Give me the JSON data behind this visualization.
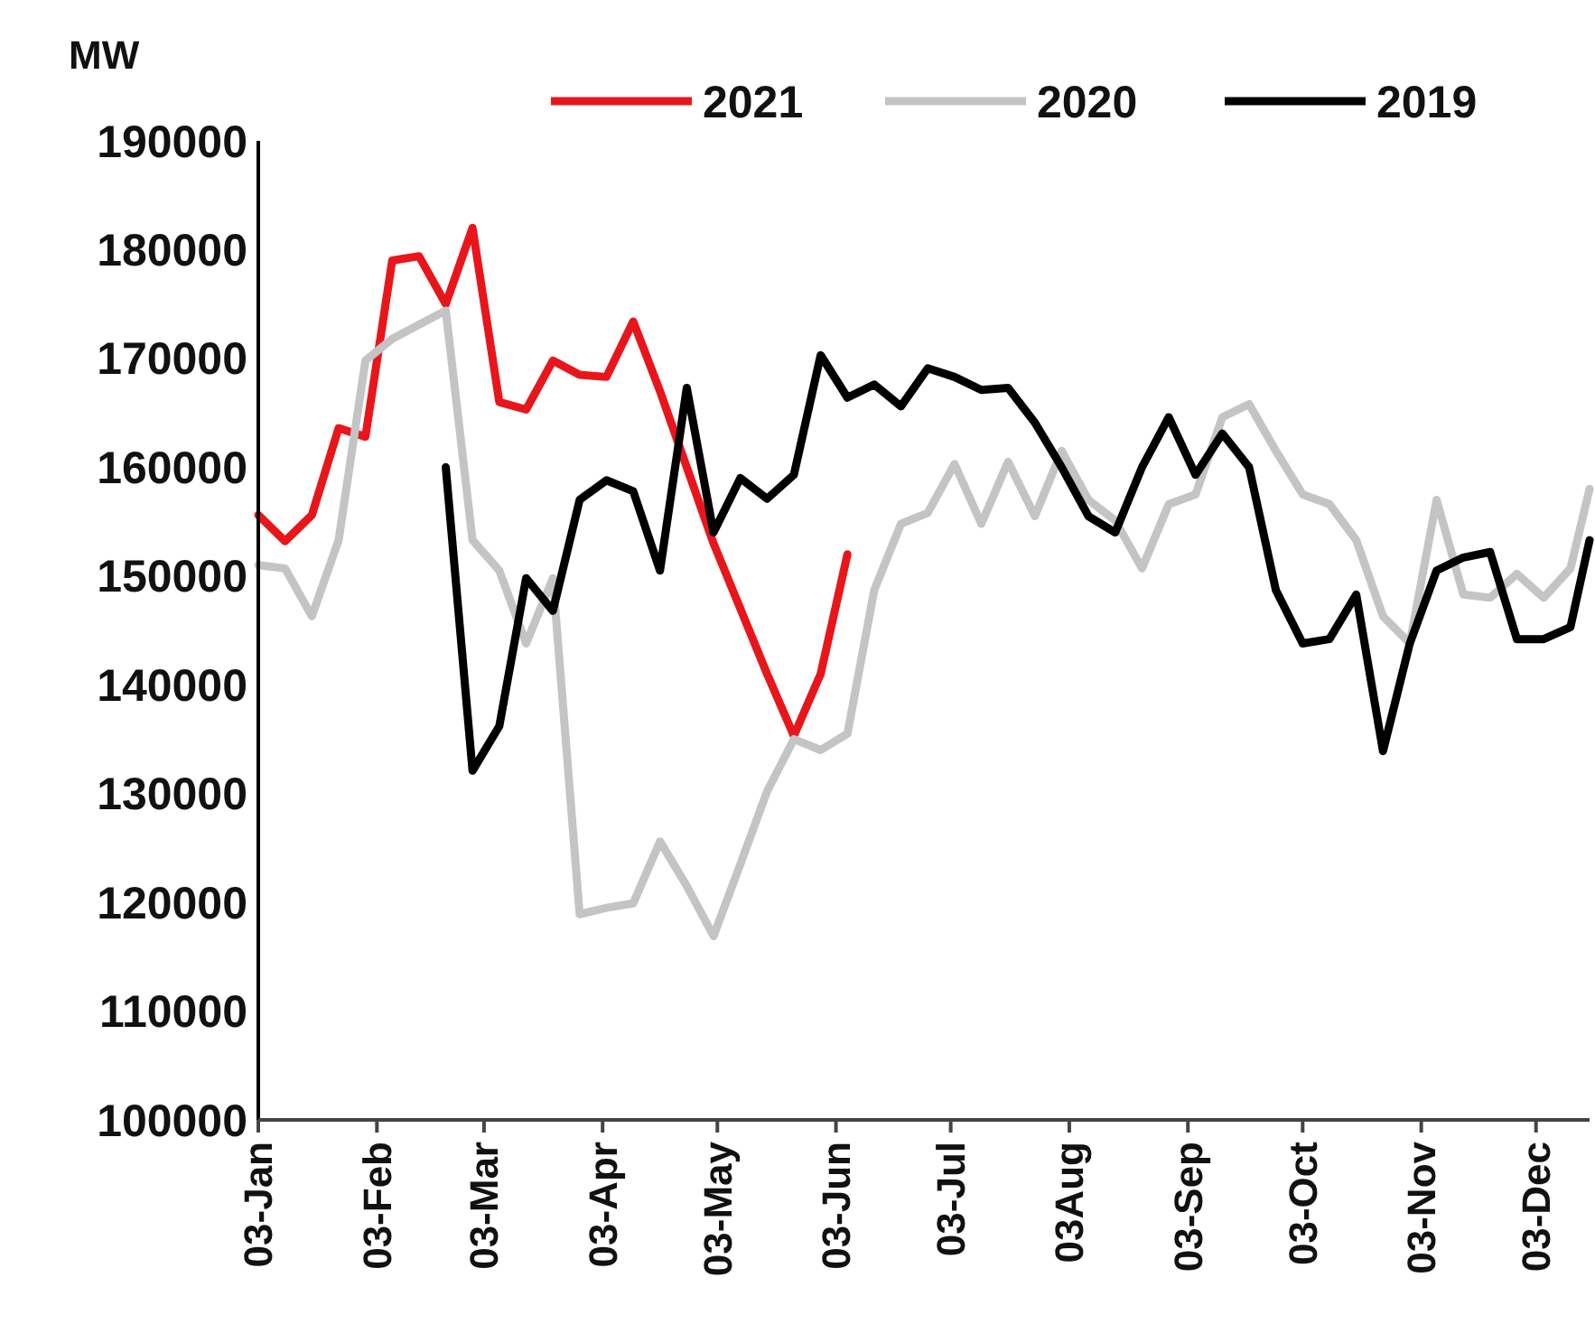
{
  "chart_data": {
    "type": "line",
    "ylabel": "MW",
    "ylim": [
      100000,
      190000
    ],
    "yticks": [
      100000,
      110000,
      120000,
      130000,
      140000,
      150000,
      160000,
      170000,
      180000,
      190000
    ],
    "xlim": [
      "--01-03",
      "--12-17"
    ],
    "xticks": [
      {
        "value": "--01-03",
        "label": "03-Jan"
      },
      {
        "value": "--02-03",
        "label": "03-Feb"
      },
      {
        "value": "--03-03",
        "label": "03-Mar"
      },
      {
        "value": "--04-03",
        "label": "03-Apr"
      },
      {
        "value": "--05-03",
        "label": "03-May"
      },
      {
        "value": "--06-03",
        "label": "03-Jun"
      },
      {
        "value": "--07-03",
        "label": "03-Jul"
      },
      {
        "value": "--08-03",
        "label": "03Aug"
      },
      {
        "value": "--09-03",
        "label": "03-Sep"
      },
      {
        "value": "--10-03",
        "label": "03-Oct"
      },
      {
        "value": "--11-03",
        "label": "03-Nov"
      },
      {
        "value": "--12-03",
        "label": "03-Dec"
      }
    ],
    "grid": false,
    "legend": "top right",
    "marker": "none",
    "line_style": "solid",
    "series": [
      {
        "name": "2021",
        "color": "#e8161b",
        "x": [
          "--01-03",
          "--01-10",
          "--01-17",
          "--01-24",
          "--01-31",
          "--02-07",
          "--02-14",
          "--02-21",
          "--02-28",
          "--03-07",
          "--03-14",
          "--03-21",
          "--03-28",
          "--04-04",
          "--04-11",
          "--04-18",
          "--04-25",
          "--05-02",
          "--05-09",
          "--05-16",
          "--05-23",
          "--05-30",
          "--06-06"
        ],
        "values": [
          155600,
          153200,
          155600,
          163600,
          162800,
          179000,
          179400,
          175000,
          182000,
          166000,
          165300,
          169800,
          168500,
          168300,
          173400,
          167000,
          160000,
          153000,
          147000,
          141000,
          135300,
          141000,
          152000
        ]
      },
      {
        "name": "2020",
        "color": "#c4c4c4",
        "x": [
          "--01-03",
          "--01-10",
          "--01-17",
          "--01-24",
          "--01-31",
          "--02-07",
          "--02-14",
          "--02-21",
          "--02-28",
          "--03-07",
          "--03-14",
          "--03-21",
          "--03-28",
          "--04-04",
          "--04-11",
          "--04-18",
          "--04-25",
          "--05-02",
          "--05-09",
          "--05-16",
          "--05-23",
          "--05-30",
          "--06-06",
          "--06-13",
          "--06-20",
          "--06-27",
          "--07-04",
          "--07-11",
          "--07-18",
          "--07-25",
          "--08-01",
          "--08-08",
          "--08-15",
          "--08-22",
          "--08-29",
          "--09-05",
          "--09-12",
          "--09-19",
          "--09-26",
          "--10-03",
          "--10-10",
          "--10-17",
          "--10-24",
          "--10-31",
          "--11-07",
          "--11-14",
          "--11-21",
          "--11-28",
          "--12-05",
          "--12-12",
          "--12-17"
        ],
        "values": [
          151000,
          150700,
          146300,
          153300,
          169800,
          171800,
          173100,
          174400,
          153300,
          150500,
          143800,
          149800,
          118900,
          119500,
          119900,
          125600,
          121500,
          116900,
          123500,
          130200,
          135000,
          134000,
          135500,
          148700,
          154800,
          155800,
          160300,
          154800,
          160500,
          155500,
          161500,
          157000,
          155100,
          150700,
          156600,
          157500,
          164600,
          165800,
          161500,
          157500,
          156600,
          153300,
          146300,
          143800,
          157000,
          148300,
          148000,
          150200,
          148000,
          150700,
          158000
        ]
      },
      {
        "name": "2019",
        "color": "#000000",
        "x": [
          "--02-21",
          "--02-28",
          "--03-07",
          "--03-14",
          "--03-21",
          "--03-28",
          "--04-04",
          "--04-11",
          "--04-18",
          "--04-25",
          "--05-02",
          "--05-09",
          "--05-16",
          "--05-23",
          "--05-30",
          "--06-06",
          "--06-13",
          "--06-20",
          "--06-27",
          "--07-04",
          "--07-11",
          "--07-18",
          "--07-25",
          "--08-01",
          "--08-08",
          "--08-15",
          "--08-22",
          "--08-29",
          "--09-05",
          "--09-12",
          "--09-19",
          "--09-26",
          "--10-03",
          "--10-10",
          "--10-17",
          "--10-24",
          "--10-31",
          "--11-07",
          "--11-14",
          "--11-21",
          "--11-28",
          "--12-05",
          "--12-12",
          "--12-17"
        ],
        "values": [
          160000,
          132100,
          136200,
          149800,
          146800,
          157000,
          158800,
          157800,
          150500,
          167300,
          154000,
          159000,
          157100,
          159300,
          170300,
          166400,
          167600,
          165600,
          169100,
          168300,
          167100,
          167300,
          164100,
          160000,
          155500,
          154000,
          160000,
          164600,
          159300,
          163100,
          160000,
          148700,
          143800,
          144200,
          148300,
          133900,
          143800,
          150500,
          151700,
          152200,
          144200,
          144200,
          145300,
          153300
        ]
      }
    ]
  }
}
